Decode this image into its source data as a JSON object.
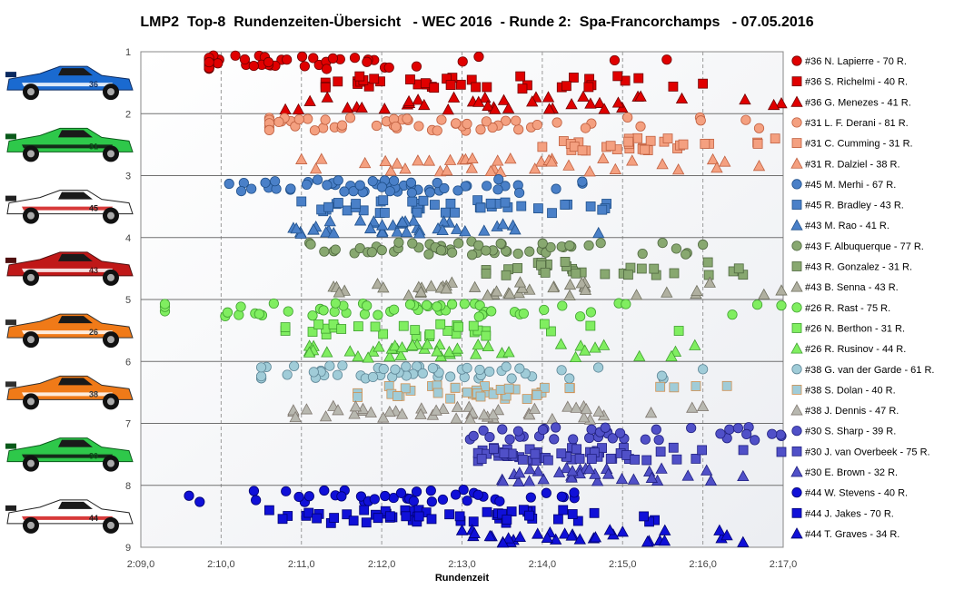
{
  "title": "LMP2  Top-8  Rundenzeiten-Übersicht   - WEC 2016  - Runde 2:  Spa-Francorchamps   - 07.05.2016",
  "chart_data": {
    "type": "scatter",
    "xlabel": "Rundenzeit",
    "xticks": [
      "2:09,0",
      "2:10,0",
      "2:11,0",
      "2:12,0",
      "2:13,0",
      "2:14,0",
      "2:15,0",
      "2:16,0",
      "2:17,0"
    ],
    "xlim": [
      129,
      137
    ],
    "yticks": [
      "1",
      "2",
      "3",
      "4",
      "5",
      "6",
      "7",
      "8",
      "9"
    ],
    "ylim": [
      1,
      9
    ],
    "grid": true,
    "legend_position": "right",
    "cars": [
      {
        "number": "36",
        "livery": "car-livery-blue"
      },
      {
        "number": "31",
        "livery": "car-livery-green"
      },
      {
        "number": "45",
        "livery": "car-livery-red-white"
      },
      {
        "number": "43",
        "livery": "car-livery-red"
      },
      {
        "number": "26",
        "livery": "car-livery-orange"
      },
      {
        "number": "38",
        "livery": "car-livery-orange"
      },
      {
        "number": "30",
        "livery": "car-livery-green"
      },
      {
        "number": "44",
        "livery": "car-livery-red-white"
      }
    ],
    "series": [
      {
        "name": "#36 N. Lapierre - 70 R.",
        "shape": "circle",
        "color": "#e00000",
        "stroke": "#700000",
        "row": 1,
        "laps": 70,
        "range": [
          129.85,
          135.55
        ],
        "mode": 129.9
      },
      {
        "name": "#36 S. Richelmi - 40 R.",
        "shape": "square",
        "color": "#e00000",
        "stroke": "#700000",
        "row": 1,
        "laps": 40,
        "range": [
          131.3,
          136.0
        ],
        "mode": 132.7
      },
      {
        "name": "#36 G. Menezes - 41 R.",
        "shape": "triangle",
        "color": "#e00000",
        "stroke": "#700000",
        "row": 1,
        "laps": 41,
        "range": [
          130.8,
          137.0
        ],
        "mode": 133.0
      },
      {
        "name": "#31 L. F. Derani - 81 R.",
        "shape": "circle",
        "color": "#f4a080",
        "stroke": "#c06040",
        "row": 2,
        "laps": 81,
        "range": [
          130.6,
          136.7
        ],
        "mode": 132.3
      },
      {
        "name": "#31 C. Cumming - 31 R.",
        "shape": "square",
        "color": "#f4a080",
        "stroke": "#c06040",
        "row": 2,
        "laps": 31,
        "range": [
          134.0,
          136.9
        ],
        "mode": 135.3
      },
      {
        "name": "#31 R. Dalziel - 38 R.",
        "shape": "triangle",
        "color": "#f4a080",
        "stroke": "#c06040",
        "row": 2,
        "laps": 38,
        "range": [
          131.0,
          136.7
        ],
        "mode": 133.6
      },
      {
        "name": "#45 M. Merhi - 67 R.",
        "shape": "circle",
        "color": "#4a80c8",
        "stroke": "#20508a",
        "row": 3,
        "laps": 67,
        "range": [
          130.1,
          134.5
        ],
        "mode": 132.1
      },
      {
        "name": "#45 R. Bradley - 43 R.",
        "shape": "square",
        "color": "#4a80c8",
        "stroke": "#20508a",
        "row": 3,
        "laps": 43,
        "range": [
          131.0,
          134.8
        ],
        "mode": 132.8
      },
      {
        "name": "#43 M. Rao - 41 R.",
        "shape": "triangle",
        "color": "#4a80c8",
        "stroke": "#20508a",
        "row": 3,
        "laps": 41,
        "range": [
          130.9,
          134.7
        ],
        "mode": 132.3
      },
      {
        "name": "#43 F. Albuquerque - 77 R.",
        "shape": "circle",
        "color": "#88a870",
        "stroke": "#506840",
        "row": 4,
        "laps": 77,
        "range": [
          131.1,
          136.0
        ],
        "mode": 133.0
      },
      {
        "name": "#43 R. Gonzalez - 31 R.",
        "shape": "square",
        "color": "#88a870",
        "stroke": "#506840",
        "row": 4,
        "laps": 31,
        "range": [
          133.3,
          136.5
        ],
        "mode": 134.3
      },
      {
        "name": "#43 B. Senna - 43 R.",
        "shape": "triangle",
        "color": "#b0b0a0",
        "stroke": "#707060",
        "row": 4,
        "laps": 43,
        "range": [
          131.4,
          137.0
        ],
        "mode": 132.8
      },
      {
        "name": "#26 R. Rast - 75 R.",
        "shape": "circle",
        "color": "#80ee60",
        "stroke": "#40a030",
        "row": 5,
        "laps": 75,
        "range": [
          129.3,
          137.0
        ],
        "mode": 131.7
      },
      {
        "name": "#26 N. Berthon - 31 R.",
        "shape": "square",
        "color": "#80ee60",
        "stroke": "#40a030",
        "row": 5,
        "laps": 31,
        "range": [
          130.8,
          135.7
        ],
        "mode": 132.4
      },
      {
        "name": "#26 R. Rusinov - 44 R.",
        "shape": "triangle",
        "color": "#80ee60",
        "stroke": "#40a030",
        "row": 5,
        "laps": 44,
        "range": [
          131.1,
          135.9
        ],
        "mode": 132.8
      },
      {
        "name": "#38 G. van der Garde - 61 R.",
        "shape": "circle",
        "color": "#a0ccd8",
        "stroke": "#608898",
        "row": 6,
        "laps": 61,
        "range": [
          130.5,
          136.0
        ],
        "mode": 131.9
      },
      {
        "name": "#38 S. Dolan - 40 R.",
        "shape": "square",
        "color": "#a0ccd8",
        "stroke": "#d09050",
        "row": 6,
        "laps": 40,
        "range": [
          131.7,
          136.3
        ],
        "mode": 133.1
      },
      {
        "name": "#38 J. Dennis - 47 R.",
        "shape": "triangle",
        "color": "#b8b8b0",
        "stroke": "#807870",
        "row": 6,
        "laps": 47,
        "range": [
          130.9,
          136.0
        ],
        "mode": 132.6
      },
      {
        "name": "#30 S. Sharp - 39 R.",
        "shape": "circle",
        "color": "#5050c8",
        "stroke": "#202080",
        "row": 7,
        "laps": 39,
        "range": [
          133.1,
          137.0
        ],
        "mode": 134.5
      },
      {
        "name": "#30 J. van Overbeek - 75 R.",
        "shape": "square",
        "color": "#5050c8",
        "stroke": "#202080",
        "row": 7,
        "laps": 75,
        "range": [
          133.2,
          137.0
        ],
        "mode": 134.2
      },
      {
        "name": "#30 E. Brown - 32 R.",
        "shape": "triangle",
        "color": "#5050c8",
        "stroke": "#202080",
        "row": 7,
        "laps": 32,
        "range": [
          133.5,
          136.5
        ],
        "mode": 134.3
      },
      {
        "name": "#44 W. Stevens - 40 R.",
        "shape": "circle",
        "color": "#1010d8",
        "stroke": "#000070",
        "row": 8,
        "laps": 40,
        "range": [
          129.6,
          134.4
        ],
        "mode": 132.5
      },
      {
        "name": "#44 J. Jakes - 70 R.",
        "shape": "square",
        "color": "#1010d8",
        "stroke": "#000070",
        "row": 8,
        "laps": 70,
        "range": [
          130.6,
          135.4
        ],
        "mode": 132.7
      },
      {
        "name": "#44 T. Graves - 34 R.",
        "shape": "triangle",
        "color": "#1010d8",
        "stroke": "#000070",
        "row": 8,
        "laps": 34,
        "range": [
          133.0,
          136.5
        ],
        "mode": 134.2
      }
    ]
  }
}
